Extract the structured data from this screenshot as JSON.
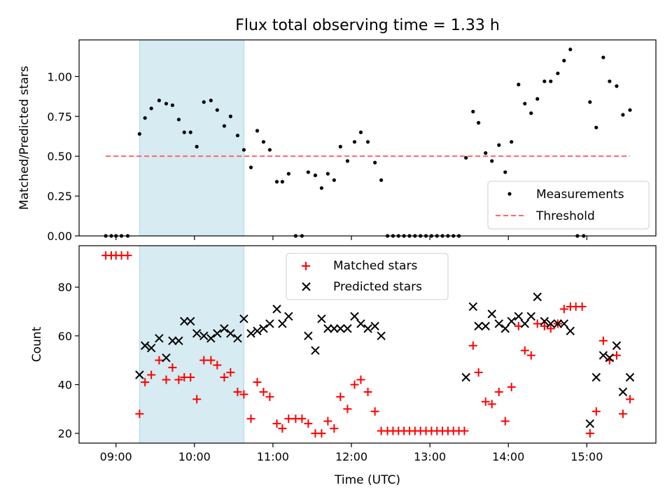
{
  "title": "Flux total observing time = 1.33 h",
  "colors": {
    "shade": "#add8e6",
    "threshold": "#ff6666",
    "matched": "#ff0000",
    "predicted": "#000000",
    "measurement": "#000000"
  },
  "xlabel": "Time (UTC)",
  "x_ticks": [
    {
      "t": 9,
      "label": "09:00"
    },
    {
      "t": 10,
      "label": "10:00"
    },
    {
      "t": 11,
      "label": "11:00"
    },
    {
      "t": 12,
      "label": "12:00"
    },
    {
      "t": 13,
      "label": "13:00"
    },
    {
      "t": 14,
      "label": "14:00"
    },
    {
      "t": 15,
      "label": "15:00"
    }
  ],
  "chart_data": [
    {
      "type": "scatter",
      "title": "Flux total observing time = 1.33 h",
      "ylabel": "Matched/Predicted stars",
      "xlim": [
        8.53,
        15.88
      ],
      "ylim": [
        0,
        1.23
      ],
      "y_ticks": [
        {
          "v": 0,
          "label": "0.00"
        },
        {
          "v": 0.25,
          "label": "0.25"
        },
        {
          "v": 0.5,
          "label": "0.50"
        },
        {
          "v": 0.75,
          "label": "0.75"
        },
        {
          "v": 1.0,
          "label": "1.00"
        }
      ],
      "shaded_span": [
        9.3,
        10.63
      ],
      "threshold": {
        "name": "Threshold",
        "value": 0.5,
        "x": [
          8.87,
          15.55
        ]
      },
      "legend": {
        "position": "lower right",
        "entries": [
          "Measurements",
          "Threshold"
        ]
      },
      "series": [
        {
          "name": "Measurements",
          "marker": "dot",
          "points": [
            [
              8.87,
              0
            ],
            [
              8.94,
              0
            ],
            [
              9.0,
              0
            ],
            [
              9.07,
              0
            ],
            [
              9.15,
              0
            ],
            [
              9.3,
              0.64
            ],
            [
              9.37,
              0.74
            ],
            [
              9.45,
              0.8
            ],
            [
              9.55,
              0.85
            ],
            [
              9.64,
              0.83
            ],
            [
              9.72,
              0.82
            ],
            [
              9.8,
              0.73
            ],
            [
              9.87,
              0.65
            ],
            [
              9.95,
              0.65
            ],
            [
              10.03,
              0.56
            ],
            [
              10.12,
              0.84
            ],
            [
              10.21,
              0.85
            ],
            [
              10.29,
              0.79
            ],
            [
              10.38,
              0.69
            ],
            [
              10.46,
              0.75
            ],
            [
              10.55,
              0.63
            ],
            [
              10.63,
              0.54
            ],
            [
              10.72,
              0.43
            ],
            [
              10.8,
              0.66
            ],
            [
              10.88,
              0.59
            ],
            [
              10.96,
              0.54
            ],
            [
              11.05,
              0.34
            ],
            [
              11.12,
              0.34
            ],
            [
              11.2,
              0.39
            ],
            [
              11.29,
              0
            ],
            [
              11.37,
              0
            ],
            [
              11.45,
              0.4
            ],
            [
              11.54,
              0.38
            ],
            [
              11.62,
              0.3
            ],
            [
              11.7,
              0.39
            ],
            [
              11.78,
              0.35
            ],
            [
              11.86,
              0.56
            ],
            [
              11.95,
              0.47
            ],
            [
              12.04,
              0.59
            ],
            [
              12.12,
              0.65
            ],
            [
              12.21,
              0.59
            ],
            [
              12.3,
              0.46
            ],
            [
              12.38,
              0.35
            ],
            [
              12.46,
              0
            ],
            [
              12.53,
              0
            ],
            [
              12.6,
              0
            ],
            [
              12.67,
              0
            ],
            [
              12.74,
              0
            ],
            [
              12.81,
              0
            ],
            [
              12.88,
              0
            ],
            [
              12.95,
              0
            ],
            [
              13.02,
              0
            ],
            [
              13.09,
              0
            ],
            [
              13.16,
              0
            ],
            [
              13.23,
              0
            ],
            [
              13.3,
              0
            ],
            [
              13.37,
              0
            ],
            [
              13.46,
              0.49
            ],
            [
              13.55,
              0.78
            ],
            [
              13.62,
              0.71
            ],
            [
              13.71,
              0.52
            ],
            [
              13.79,
              0.47
            ],
            [
              13.88,
              0.57
            ],
            [
              13.96,
              0.4
            ],
            [
              14.04,
              0.59
            ],
            [
              14.13,
              0.95
            ],
            [
              14.21,
              0.83
            ],
            [
              14.29,
              0.77
            ],
            [
              14.37,
              0.86
            ],
            [
              14.46,
              0.97
            ],
            [
              14.54,
              0.97
            ],
            [
              14.63,
              1.02
            ],
            [
              14.71,
              1.1
            ],
            [
              14.79,
              1.17
            ],
            [
              14.88,
              0
            ],
            [
              14.96,
              0
            ],
            [
              15.04,
              0.84
            ],
            [
              15.12,
              0.68
            ],
            [
              15.21,
              1.12
            ],
            [
              15.29,
              0.97
            ],
            [
              15.38,
              0.94
            ],
            [
              15.46,
              0.76
            ],
            [
              15.55,
              0.79
            ]
          ]
        }
      ]
    },
    {
      "type": "scatter",
      "ylabel": "Count",
      "xlabel": "Time (UTC)",
      "xlim": [
        8.53,
        15.88
      ],
      "ylim": [
        16,
        97
      ],
      "y_ticks": [
        {
          "v": 20,
          "label": "20"
        },
        {
          "v": 40,
          "label": "40"
        },
        {
          "v": 60,
          "label": "60"
        },
        {
          "v": 80,
          "label": "80"
        }
      ],
      "shaded_span": [
        9.3,
        10.63
      ],
      "legend": {
        "position": "upper center",
        "entries": [
          "Matched stars",
          "Predicted stars"
        ]
      },
      "series": [
        {
          "name": "Matched stars",
          "marker": "plus",
          "points": [
            [
              8.87,
              93
            ],
            [
              8.94,
              93
            ],
            [
              9.0,
              93
            ],
            [
              9.07,
              93
            ],
            [
              9.15,
              93
            ],
            [
              9.3,
              28
            ],
            [
              9.37,
              41
            ],
            [
              9.45,
              44
            ],
            [
              9.55,
              50
            ],
            [
              9.64,
              42
            ],
            [
              9.72,
              47
            ],
            [
              9.8,
              42
            ],
            [
              9.87,
              43
            ],
            [
              9.95,
              43
            ],
            [
              10.03,
              34
            ],
            [
              10.12,
              50
            ],
            [
              10.21,
              50
            ],
            [
              10.29,
              48
            ],
            [
              10.38,
              43
            ],
            [
              10.46,
              45
            ],
            [
              10.55,
              37
            ],
            [
              10.63,
              36
            ],
            [
              10.72,
              26
            ],
            [
              10.8,
              41
            ],
            [
              10.88,
              37
            ],
            [
              10.96,
              35
            ],
            [
              11.05,
              24
            ],
            [
              11.12,
              22
            ],
            [
              11.2,
              26
            ],
            [
              11.29,
              26
            ],
            [
              11.37,
              26
            ],
            [
              11.45,
              24
            ],
            [
              11.54,
              20
            ],
            [
              11.62,
              20
            ],
            [
              11.7,
              25
            ],
            [
              11.78,
              22
            ],
            [
              11.86,
              35
            ],
            [
              11.95,
              30
            ],
            [
              12.04,
              40
            ],
            [
              12.12,
              42
            ],
            [
              12.21,
              37
            ],
            [
              12.3,
              29
            ],
            [
              12.38,
              21
            ],
            [
              12.46,
              21
            ],
            [
              12.53,
              21
            ],
            [
              12.6,
              21
            ],
            [
              12.67,
              21
            ],
            [
              12.74,
              21
            ],
            [
              12.81,
              21
            ],
            [
              12.88,
              21
            ],
            [
              12.95,
              21
            ],
            [
              13.02,
              21
            ],
            [
              13.09,
              21
            ],
            [
              13.16,
              21
            ],
            [
              13.23,
              21
            ],
            [
              13.3,
              21
            ],
            [
              13.37,
              21
            ],
            [
              13.44,
              21
            ],
            [
              13.55,
              56
            ],
            [
              13.62,
              45
            ],
            [
              13.71,
              33
            ],
            [
              13.79,
              32
            ],
            [
              13.88,
              37
            ],
            [
              13.96,
              25
            ],
            [
              14.04,
              39
            ],
            [
              14.13,
              64
            ],
            [
              14.21,
              54
            ],
            [
              14.29,
              52
            ],
            [
              14.37,
              65
            ],
            [
              14.46,
              64
            ],
            [
              14.54,
              63
            ],
            [
              14.63,
              65
            ],
            [
              14.71,
              71
            ],
            [
              14.79,
              72
            ],
            [
              14.86,
              72
            ],
            [
              14.94,
              72
            ],
            [
              15.04,
              20
            ],
            [
              15.12,
              29
            ],
            [
              15.21,
              58
            ],
            [
              15.29,
              50
            ],
            [
              15.38,
              52
            ],
            [
              15.46,
              28
            ],
            [
              15.55,
              34
            ]
          ]
        },
        {
          "name": "Predicted stars",
          "marker": "x",
          "points": [
            [
              9.3,
              44
            ],
            [
              9.37,
              56
            ],
            [
              9.45,
              55
            ],
            [
              9.55,
              59
            ],
            [
              9.64,
              51
            ],
            [
              9.72,
              58
            ],
            [
              9.8,
              58
            ],
            [
              9.87,
              66
            ],
            [
              9.95,
              66
            ],
            [
              10.03,
              61
            ],
            [
              10.12,
              60
            ],
            [
              10.21,
              59
            ],
            [
              10.29,
              61
            ],
            [
              10.38,
              63
            ],
            [
              10.46,
              61
            ],
            [
              10.55,
              59
            ],
            [
              10.63,
              67
            ],
            [
              10.72,
              61
            ],
            [
              10.8,
              62
            ],
            [
              10.88,
              63
            ],
            [
              10.96,
              65
            ],
            [
              11.05,
              71
            ],
            [
              11.12,
              65
            ],
            [
              11.2,
              68
            ],
            [
              11.45,
              60
            ],
            [
              11.54,
              54
            ],
            [
              11.62,
              67
            ],
            [
              11.7,
              63
            ],
            [
              11.78,
              63
            ],
            [
              11.86,
              63
            ],
            [
              11.95,
              63
            ],
            [
              12.04,
              68
            ],
            [
              12.12,
              65
            ],
            [
              12.21,
              63
            ],
            [
              12.3,
              64
            ],
            [
              12.38,
              60
            ],
            [
              13.46,
              43
            ],
            [
              13.55,
              72
            ],
            [
              13.62,
              64
            ],
            [
              13.71,
              64
            ],
            [
              13.79,
              69
            ],
            [
              13.88,
              65
            ],
            [
              13.96,
              63
            ],
            [
              14.04,
              66
            ],
            [
              14.13,
              68
            ],
            [
              14.21,
              65
            ],
            [
              14.29,
              68
            ],
            [
              14.37,
              76
            ],
            [
              14.46,
              66
            ],
            [
              14.54,
              65
            ],
            [
              14.63,
              65
            ],
            [
              14.71,
              65
            ],
            [
              14.79,
              62
            ],
            [
              15.04,
              24
            ],
            [
              15.12,
              43
            ],
            [
              15.21,
              52
            ],
            [
              15.29,
              51
            ],
            [
              15.38,
              56
            ],
            [
              15.46,
              37
            ],
            [
              15.55,
              43
            ]
          ]
        }
      ]
    }
  ]
}
